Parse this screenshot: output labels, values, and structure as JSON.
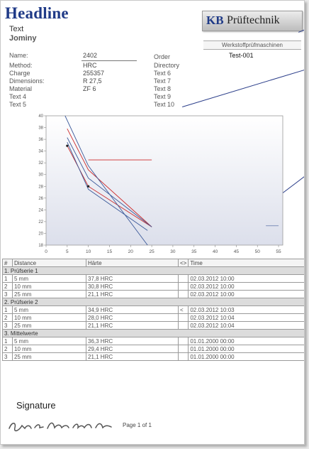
{
  "header": {
    "headline": "Headline",
    "text": "Text",
    "subtitle": "Jominy"
  },
  "logo": {
    "brand_initials": "KB",
    "brand_name": "Prüftechnik",
    "tagline": "Werkstoffprüfmaschinen",
    "test_id": "Test-001"
  },
  "fields_left": [
    {
      "label": "Name:",
      "value": "2402"
    },
    {
      "label": "Method:",
      "value": "HRC"
    },
    {
      "label": "Charge",
      "value": "255357"
    },
    {
      "label": "Dimensions:",
      "value": "R 27,5"
    },
    {
      "label": "Material",
      "value": "ZF 6"
    },
    {
      "label": "Text 4",
      "value": ""
    },
    {
      "label": "Text 5",
      "value": ""
    }
  ],
  "fields_right": [
    "Order",
    "Directory",
    "Text 6",
    "Text 7",
    "Text 8",
    "Text 9",
    "Text 10"
  ],
  "colors": {
    "headline": "#1f3a87",
    "series_red": "#cc2a2a",
    "series_blue": "#3c5a9a",
    "callout": "#2b3e8a"
  },
  "chart_data": {
    "type": "line",
    "x_ticks": [
      0,
      5,
      10,
      15,
      20,
      25,
      30,
      35,
      40,
      45,
      50,
      55
    ],
    "y_ticks": [
      18,
      20,
      22,
      24,
      26,
      28,
      30,
      32,
      34,
      36,
      38,
      40
    ],
    "xlim": [
      0,
      56
    ],
    "ylim": [
      18,
      40
    ],
    "grid": false,
    "series": [
      {
        "color": "#cc2a2a",
        "x": [
          5,
          10,
          25
        ],
        "y": [
          37.8,
          30.8,
          21.1
        ]
      },
      {
        "color": "#cc2a2a",
        "x": [
          5,
          10,
          25
        ],
        "y": [
          34.9,
          28.0,
          21.1
        ]
      },
      {
        "color": "#3c5a9a",
        "x": [
          5,
          10,
          25
        ],
        "y": [
          36.3,
          29.4,
          21.1
        ]
      },
      {
        "color": "#3c5a9a",
        "x": [
          4.5,
          10,
          24
        ],
        "y": [
          40,
          31.5,
          18
        ]
      },
      {
        "color": "#3c5a9a",
        "x": [
          5,
          10,
          24
        ],
        "y": [
          35.5,
          27.5,
          20.5
        ]
      }
    ],
    "limit_line": {
      "color": "#cc2a2a",
      "x": [
        10,
        25
      ],
      "y": [
        32.5,
        32.5
      ]
    },
    "markers": [
      {
        "x": 5,
        "y": 34.9
      },
      {
        "x": 10,
        "y": 28.0
      }
    ],
    "side_mark": {
      "x": [
        52,
        55
      ],
      "y": [
        21.3,
        21.3
      ]
    }
  },
  "table": {
    "columns": [
      "#",
      "Distance",
      "Härte",
      "<>",
      "Time"
    ],
    "groups": [
      {
        "title": "1. Prüfserie 1",
        "rows": [
          [
            "1",
            "5 mm",
            "37,8 HRC",
            "",
            "02.03.2012 10:00"
          ],
          [
            "2",
            "10 mm",
            "30,8 HRC",
            "",
            "02.03.2012 10:00"
          ],
          [
            "3",
            "25 mm",
            "21,1 HRC",
            "",
            "02.03.2012 10:00"
          ]
        ]
      },
      {
        "title": "2. Prüfserie 2",
        "rows": [
          [
            "1",
            "5 mm",
            "34,9 HRC",
            "<",
            "02.03.2012 10:03"
          ],
          [
            "2",
            "10 mm",
            "28,0 HRC",
            "",
            "02.03.2012 10:04"
          ],
          [
            "3",
            "25 mm",
            "21,1 HRC",
            "",
            "02.03.2012 10:04"
          ]
        ]
      },
      {
        "title": "3. Mittelwerte",
        "rows": [
          [
            "1",
            "5 mm",
            "36,3 HRC",
            "",
            "01.01.2000 00:00"
          ],
          [
            "2",
            "10 mm",
            "29,4 HRC",
            "",
            "01.01.2000 00:00"
          ],
          [
            "3",
            "25 mm",
            "21,1 HRC",
            "",
            "01.01.2000 00:00"
          ]
        ]
      }
    ]
  },
  "footer": {
    "signature_label": "Signature",
    "page_text": "Page 1 of 1"
  }
}
